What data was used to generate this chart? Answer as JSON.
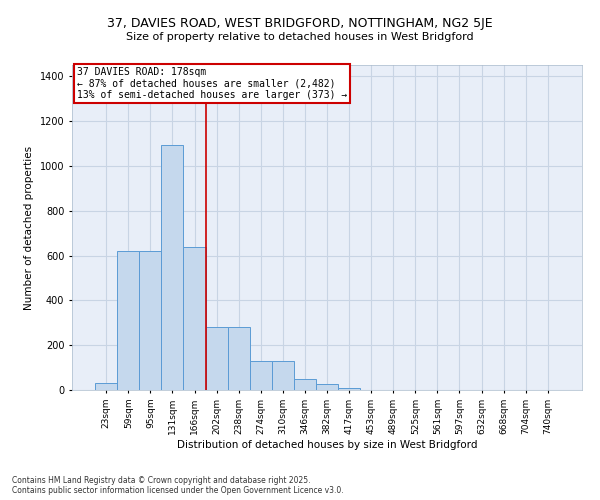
{
  "title_line1": "37, DAVIES ROAD, WEST BRIDGFORD, NOTTINGHAM, NG2 5JE",
  "title_line2": "Size of property relative to detached houses in West Bridgford",
  "xlabel": "Distribution of detached houses by size in West Bridgford",
  "ylabel": "Number of detached properties",
  "categories": [
    "23sqm",
    "59sqm",
    "95sqm",
    "131sqm",
    "166sqm",
    "202sqm",
    "238sqm",
    "274sqm",
    "310sqm",
    "346sqm",
    "382sqm",
    "417sqm",
    "453sqm",
    "489sqm",
    "525sqm",
    "561sqm",
    "597sqm",
    "632sqm",
    "668sqm",
    "704sqm",
    "740sqm"
  ],
  "values": [
    30,
    620,
    620,
    1095,
    640,
    280,
    280,
    130,
    130,
    50,
    25,
    10,
    0,
    0,
    0,
    0,
    0,
    0,
    0,
    0,
    0
  ],
  "bar_color": "#c5d8ed",
  "bar_edge_color": "#5b9bd5",
  "vline_color": "#cc0000",
  "annotation_box_color": "#cc0000",
  "grid_color": "#c8d4e4",
  "background_color": "#e8eef8",
  "footer_line1": "Contains HM Land Registry data © Crown copyright and database right 2025.",
  "footer_line2": "Contains public sector information licensed under the Open Government Licence v3.0.",
  "ylim": [
    0,
    1450
  ],
  "vline_x": 4.5,
  "annotation_title": "37 DAVIES ROAD: 178sqm",
  "annotation_line1": "← 87% of detached houses are smaller (2,482)",
  "annotation_line2": "13% of semi-detached houses are larger (373) →"
}
